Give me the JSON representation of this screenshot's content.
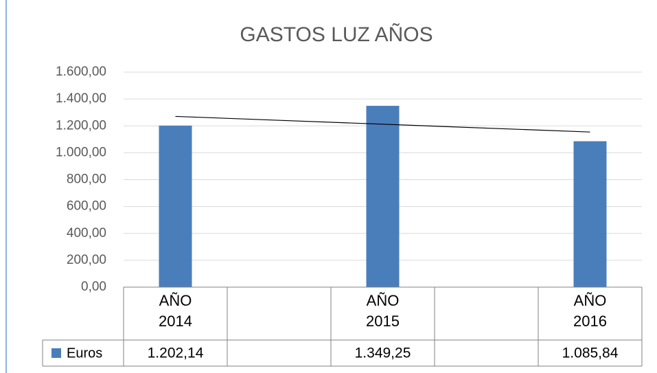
{
  "chart_data": {
    "type": "bar",
    "title": "GASTOS LUZ AÑOS",
    "categories": [
      "AÑO 2014",
      null,
      "AÑO 2015",
      null,
      "AÑO 2016"
    ],
    "series": [
      {
        "name": "Euros",
        "color": "#4a7ebb",
        "values": [
          1202.14,
          null,
          1349.25,
          null,
          1085.84
        ],
        "value_labels": [
          "1.202,14",
          null,
          "1.349,25",
          null,
          "1.085,84"
        ]
      }
    ],
    "ylim": [
      0,
      1600
    ],
    "yticks": [
      {
        "value": 0,
        "label": "0,00"
      },
      {
        "value": 200,
        "label": "200,00"
      },
      {
        "value": 400,
        "label": "400,00"
      },
      {
        "value": 600,
        "label": "600,00"
      },
      {
        "value": 800,
        "label": "800,00"
      },
      {
        "value": 1000,
        "label": "1.000,00"
      },
      {
        "value": 1200,
        "label": "1.200,00"
      },
      {
        "value": 1400,
        "label": "1.400,00"
      },
      {
        "value": 1600,
        "label": "1.600,00"
      }
    ],
    "grid": true,
    "trendline": "linear",
    "data_table": true
  }
}
